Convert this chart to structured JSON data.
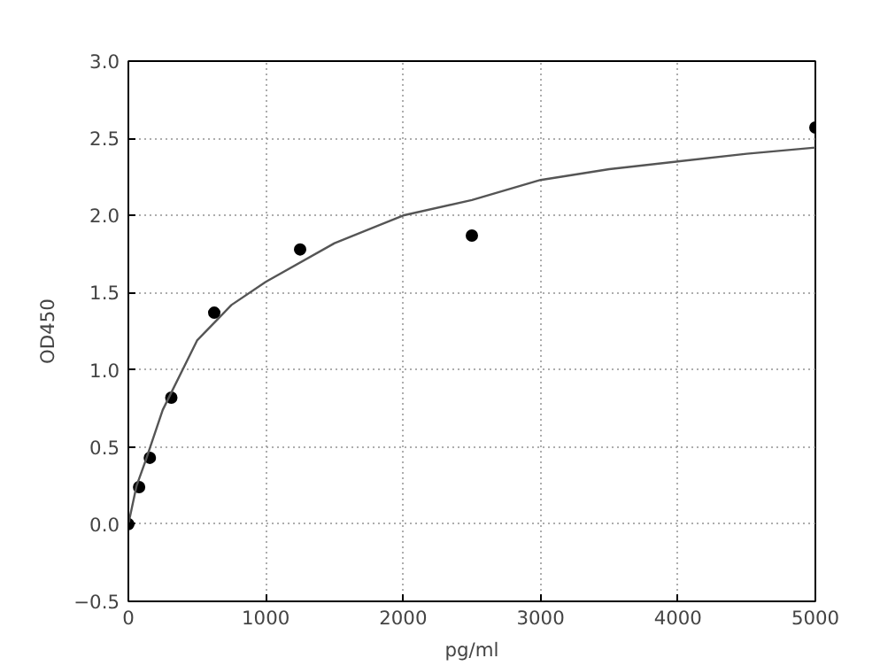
{
  "chart_data": {
    "type": "scatter",
    "xlabel": "pg/ml",
    "ylabel": "OD450",
    "xlim": [
      0,
      5000
    ],
    "ylim": [
      -0.5,
      3.0
    ],
    "xticks": [
      0,
      1000,
      2000,
      3000,
      4000,
      5000
    ],
    "yticks": [
      {
        "value": -0.5,
        "label": "−0.5"
      },
      {
        "value": 0,
        "label": "0.0"
      },
      {
        "value": 0.5,
        "label": "0.5"
      },
      {
        "value": 1,
        "label": "1.0"
      },
      {
        "value": 1.5,
        "label": "1.5"
      },
      {
        "value": 2,
        "label": "2.0"
      },
      {
        "value": 2.5,
        "label": "2.5"
      },
      {
        "value": 3,
        "label": "3.0"
      }
    ],
    "grid": true,
    "series": [
      {
        "marker": "circle",
        "color": "#000000",
        "x": [
          0,
          78.125,
          156.25,
          312.5,
          625,
          1250,
          2500,
          5000
        ],
        "values": [
          0,
          0.24,
          0.43,
          0.82,
          1.37,
          1.78,
          1.87,
          2.57
        ]
      },
      {
        "type": "line",
        "color": "#555555",
        "line_style": "solid",
        "x": [
          0,
          60,
          125,
          250,
          500,
          750,
          1000,
          1500,
          2000,
          2500,
          3000,
          3500,
          4000,
          4500,
          5000
        ],
        "values": [
          0,
          0.25,
          0.41,
          0.74,
          1.19,
          1.42,
          1.57,
          1.82,
          2.0,
          2.1,
          2.23,
          2.3,
          2.35,
          2.4,
          2.44
        ]
      }
    ]
  }
}
